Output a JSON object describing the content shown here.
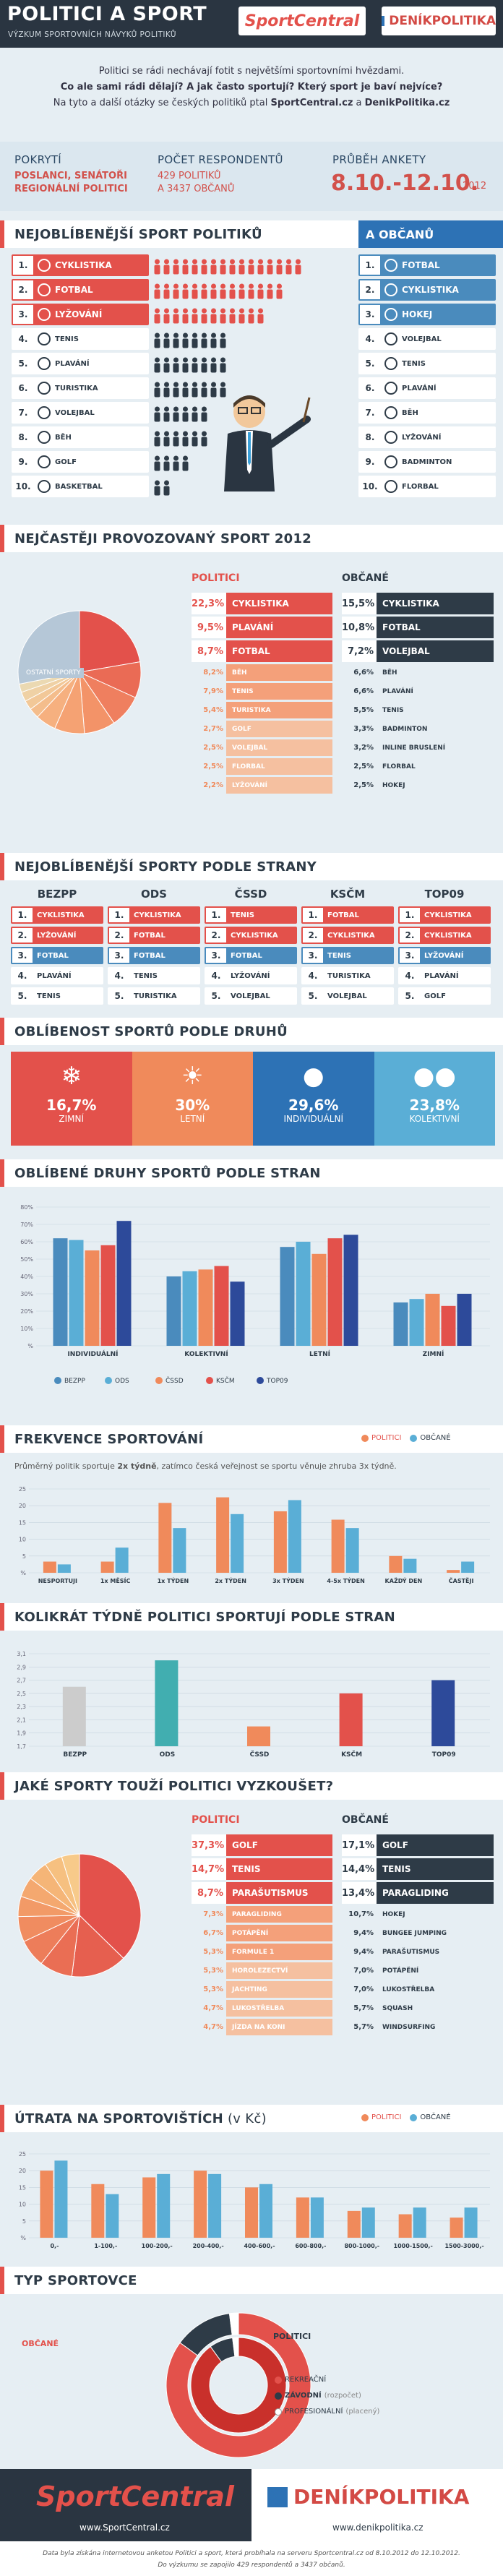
{
  "header": {
    "title": "POLITICI A SPORT",
    "subtitle": "VÝZKUM SPORTOVNÍCH NÁVYKŮ POLITIKŮ",
    "brand1": "SportCentral",
    "brand2": "DENÍKPOLITIKA"
  },
  "intro": {
    "l1": "Politici se rádi nechávají fotit s největšími sportovními hvězdami.",
    "l2": "Co ale sami rádi dělají? A jak často sportují? Který sport je baví nejvíce?",
    "l3a": "Na tyto a další otázky se českých politiků ptal ",
    "l3b": "SportCentral.cz",
    "l3c": " a ",
    "l3d": "DenikPolitika.cz"
  },
  "stats": {
    "h1": "POKRYTÍ",
    "v1a": "POSLANCI, SENÁTOŘI",
    "v1b": "REGIONÁLNÍ POLITICI",
    "h2": "POČET RESPONDENTŮ",
    "v2a": "429 POLITIKŮ",
    "v2b": "A 3437 OBČANŮ",
    "h3": "PRŮBĚH ANKETY",
    "v3": "8.10.-12.10.",
    "v3y": "2012"
  },
  "s1": {
    "title": "NEJOBLÍBENĚJŠÍ SPORT POLITIKŮ",
    "right_title": "A OBČANŮ",
    "pol": [
      "CYKLISTIKA",
      "FOTBAL",
      "LYŽOVÁNÍ",
      "TENIS",
      "PLAVÁNÍ",
      "TURISTIKA",
      "VOLEJBAL",
      "BĚH",
      "GOLF",
      "BASKETBAL"
    ],
    "obc": [
      "FOTBAL",
      "CYKLISTIKA",
      "HOKEJ",
      "VOLEJBAL",
      "TENIS",
      "PLAVÁNÍ",
      "BĚH",
      "LYŽOVÁNÍ",
      "BADMINTON",
      "FLORBAL"
    ],
    "nums": [
      "1.",
      "2.",
      "3.",
      "4.",
      "5.",
      "6.",
      "7.",
      "8.",
      "9.",
      "10."
    ],
    "people": [
      8,
      7,
      6,
      4,
      4,
      4,
      3,
      3,
      2,
      1
    ]
  },
  "s2": {
    "title": "NEJČASTĚJI PROVOZOVANÝ SPORT 2012",
    "lp": "POLITICI",
    "lo": "OBČANÉ",
    "other": "OSTATNÍ SPORTY",
    "pol": [
      [
        "22,3%",
        "CYKLISTIKA"
      ],
      [
        "9,5%",
        "PLAVÁNÍ"
      ],
      [
        "8,7%",
        "FOTBAL"
      ],
      [
        "8,2%",
        "BĚH"
      ],
      [
        "7,9%",
        "TENIS"
      ],
      [
        "5,4%",
        "TURISTIKA"
      ],
      [
        "2,7%",
        "GOLF"
      ],
      [
        "2,5%",
        "VOLEJBAL"
      ],
      [
        "2,5%",
        "FLORBAL"
      ],
      [
        "2,2%",
        "LYŽOVÁNÍ"
      ]
    ],
    "obc": [
      [
        "15,5%",
        "CYKLISTIKA"
      ],
      [
        "10,8%",
        "FOTBAL"
      ],
      [
        "7,2%",
        "VOLEJBAL"
      ],
      [
        "6,6%",
        "BĚH"
      ],
      [
        "6,6%",
        "PLAVÁNÍ"
      ],
      [
        "5,5%",
        "TENIS"
      ],
      [
        "3,3%",
        "BADMINTON"
      ],
      [
        "3,2%",
        "INLINE BRUSLENÍ"
      ],
      [
        "2,5%",
        "FLORBAL"
      ],
      [
        "2,5%",
        "HOKEJ"
      ]
    ]
  },
  "s3": {
    "title": "NEJOBLÍBENĚJŠÍ SPORTY PODLE STRANY",
    "parties": [
      {
        "name": "BEZPP",
        "items": [
          "CYKLISTIKA",
          "LYŽOVÁNÍ",
          "FOTBAL",
          "PLAVÁNÍ",
          "TENIS"
        ]
      },
      {
        "name": "ODS",
        "items": [
          "CYKLISTIKA",
          "FOTBAL",
          "FOTBAL",
          "TENIS",
          "TURISTIKA"
        ]
      },
      {
        "name": "ČSSD",
        "items": [
          "TENIS",
          "CYKLISTIKA",
          "FOTBAL",
          "LYŽOVÁNÍ",
          "VOLEJBAL"
        ]
      },
      {
        "name": "KSČM",
        "items": [
          "FOTBAL",
          "CYKLISTIKA",
          "TENIS",
          "TURISTIKA",
          "VOLEJBAL"
        ]
      },
      {
        "name": "TOP09",
        "items": [
          "CYKLISTIKA",
          "CYKLISTIKA",
          "LYŽOVÁNÍ",
          "PLAVÁNÍ",
          "GOLF"
        ]
      }
    ],
    "nums": [
      "1.",
      "2.",
      "3.",
      "4.",
      "5."
    ]
  },
  "s4": {
    "title": "OBLÍBENOST SPORTŮ PODLE DRUHŮ",
    "items": [
      [
        "16,7%",
        "ZIMNÍ"
      ],
      [
        "30%",
        "LETNÍ"
      ],
      [
        "29,6%",
        "INDIVIDUÁLNÍ"
      ],
      [
        "23,8%",
        "KOLEKTIVNÍ"
      ]
    ]
  },
  "s5": {
    "title": "OBLÍBENÉ DRUHY SPORTŮ PODLE STRAN",
    "legend": [
      "BEZPP",
      "ODS",
      "ČSSD",
      "KSČM",
      "TOP09"
    ],
    "yticks": [
      "80%",
      "70%",
      "60%",
      "50%",
      "40%",
      "30%",
      "20%",
      "10%",
      "%"
    ]
  },
  "s6": {
    "title": "FREKVENCE SPORTOVÁNÍ",
    "lp": "POLITICI",
    "lo": "OBČANÉ",
    "note_a": "Průměrný politik sportuje ",
    "note_b": "2x týdně",
    "note_c": ", zatímco česká veřejnost se sportu věnuje zhruba 3x týdně.",
    "yticks": [
      "25",
      "20",
      "15",
      "10",
      "5",
      "%"
    ]
  },
  "s7": {
    "title": "KOLIKRÁT TÝDNĚ POLITICI SPORTUJÍ PODLE STRAN",
    "yticks": [
      "3,1",
      "2,9",
      "2,7",
      "2,5",
      "2,3",
      "2,1",
      "1,9",
      "1,7"
    ]
  },
  "s8": {
    "title": "JAKÉ SPORTY TOUŽÍ POLITICI VYZKOUŠET?",
    "lp": "POLITICI",
    "lo": "OBČANÉ",
    "pol": [
      [
        "37,3%",
        "GOLF"
      ],
      [
        "14,7%",
        "TENIS"
      ],
      [
        "8,7%",
        "PARAŠUTISMUS"
      ],
      [
        "7,3%",
        "PARAGLIDING"
      ],
      [
        "6,7%",
        "POTÁPĚNÍ"
      ],
      [
        "5,3%",
        "FORMULE 1"
      ],
      [
        "5,3%",
        "HOROLEZECTVÍ"
      ],
      [
        "5,3%",
        "JACHTING"
      ],
      [
        "4,7%",
        "LUKOSTŘELBA"
      ],
      [
        "4,7%",
        "JÍZDA NA KONI"
      ]
    ],
    "obc": [
      [
        "17,1%",
        "GOLF"
      ],
      [
        "14,4%",
        "TENIS"
      ],
      [
        "13,4%",
        "PARAGLIDING"
      ],
      [
        "10,7%",
        "HOKEJ"
      ],
      [
        "9,4%",
        "BUNGEE JUMPING"
      ],
      [
        "9,4%",
        "PARAŠUTISMUS"
      ],
      [
        "7,0%",
        "POTÁPĚNÍ"
      ],
      [
        "7,0%",
        "LUKOSTŘELBA"
      ],
      [
        "5,7%",
        "SQUASH"
      ],
      [
        "5,7%",
        "WINDSURFING"
      ]
    ]
  },
  "s9": {
    "title": "ÚTRATA NA SPORTOVIŠTÍCH",
    "title_unit": "(v Kč)",
    "lp": "POLITICI",
    "lo": "OBČANÉ",
    "yticks": [
      "25",
      "20",
      "15",
      "10",
      "5",
      "%"
    ]
  },
  "s10": {
    "title": "TYP SPORTOVCE",
    "left": "OBČANÉ",
    "right": "POLITICI",
    "l1": "REKREAČNÍ",
    "l2": "ZÁVODNÍ",
    "l2s": "(rozpočet)",
    "l3": "PROFESIONÁLNÍ",
    "l3s": "(placený)"
  },
  "footer": {
    "b1": "SportCentral",
    "u1": "www.SportCentral.cz",
    "b2": "DENÍKPOLITIKA",
    "u2": "www.denikpolitika.cz",
    "note1": "Data byla získána internetovou anketou Politici a sport, která probíhala na serveru Sportcentral.cz od 8.10.2012 do 12.10.2012.",
    "note2": "Do výzkumu se zapojilo 429 respondentů a 3437 občanů."
  },
  "colors": {
    "red": "#e3514b",
    "blue": "#2d72b5",
    "orange": "#f08a5b",
    "lightblue": "#5aaed6",
    "dark": "#2e3b47",
    "teal": "#41aeb0"
  },
  "chart_data": [
    {
      "type": "pie",
      "title": "NEJČASTĚJI PROVOZOVANÝ SPORT 2012",
      "series": [
        {
          "name": "POLITICI",
          "labels": [
            "CYKLISTIKA",
            "PLAVÁNÍ",
            "FOTBAL",
            "BĚH",
            "TENIS",
            "TURISTIKA",
            "GOLF",
            "VOLEJBAL",
            "FLORBAL",
            "LYŽOVÁNÍ",
            "OSTATNÍ SPORTY"
          ],
          "values": [
            22.3,
            9.5,
            8.7,
            8.2,
            7.9,
            5.4,
            2.7,
            2.5,
            2.5,
            2.2,
            28.1
          ]
        }
      ]
    },
    {
      "type": "bar",
      "title": "OBLÍBENÉ DRUHY SPORTŮ PODLE STRAN",
      "categories": [
        "INDIVIDUÁLNÍ",
        "KOLEKTIVNÍ",
        "LETNÍ",
        "ZIMNÍ"
      ],
      "ylim": [
        0,
        80
      ],
      "series": [
        {
          "name": "BEZPP",
          "values": [
            62,
            40,
            57,
            25
          ]
        },
        {
          "name": "ODS",
          "values": [
            61,
            43,
            60,
            27
          ]
        },
        {
          "name": "ČSSD",
          "values": [
            55,
            44,
            53,
            30
          ]
        },
        {
          "name": "KSČM",
          "values": [
            58,
            46,
            62,
            23
          ]
        },
        {
          "name": "TOP09",
          "values": [
            72,
            37,
            64,
            30
          ]
        }
      ]
    },
    {
      "type": "bar",
      "title": "FREKVENCE SPORTOVÁNÍ",
      "categories": [
        "NESPORTUJI",
        "1x MĚSÍC",
        "1x TÝDEN",
        "2x TÝDEN",
        "3x TÝDEN",
        "4-5x TÝDEN",
        "KAŽDÝ DEN",
        "ČASTĚJI"
      ],
      "ylim": [
        0,
        30
      ],
      "series": [
        {
          "name": "POLITICI",
          "values": [
            4,
            4,
            25,
            27,
            22,
            19,
            6,
            1
          ]
        },
        {
          "name": "OBČANÉ",
          "values": [
            3,
            9,
            16,
            21,
            26,
            16,
            5,
            4
          ]
        }
      ]
    },
    {
      "type": "bar",
      "title": "KOLIKRÁT TÝDNĚ POLITICI SPORTUJÍ PODLE STRAN",
      "categories": [
        "BEZPP",
        "ODS",
        "ČSSD",
        "KSČM",
        "TOP09"
      ],
      "ylim": [
        1.7,
        3.1
      ],
      "series": [
        {
          "name": "POLITICI",
          "values": [
            2.6,
            3.0,
            2.0,
            2.5,
            2.7
          ]
        }
      ]
    },
    {
      "type": "pie",
      "title": "JAKÉ SPORTY TOUŽÍ POLITICI VYZKOUŠET?",
      "series": [
        {
          "name": "POLITICI",
          "labels": [
            "GOLF",
            "TENIS",
            "PARAŠUTISMUS",
            "PARAGLIDING",
            "POTÁPĚNÍ",
            "FORMULE 1",
            "HOROLEZECTVÍ",
            "JACHTING",
            "LUKOSTŘELBA",
            "JÍZDA NA KONI"
          ],
          "values": [
            37.3,
            14.7,
            8.7,
            7.3,
            6.7,
            5.3,
            5.3,
            5.3,
            4.7,
            4.7
          ]
        }
      ]
    },
    {
      "type": "bar",
      "title": "ÚTRATA NA SPORTOVIŠTÍCH",
      "categories": [
        "0,-",
        "1-100,-",
        "100-200,-",
        "200-400,-",
        "400-600,-",
        "600-800,-",
        "800-1000,-",
        "1000-1500,-",
        "1500-3000,-"
      ],
      "ylim": [
        0,
        25
      ],
      "series": [
        {
          "name": "POLITICI",
          "values": [
            20,
            16,
            18,
            20,
            15,
            12,
            8,
            7,
            6
          ]
        },
        {
          "name": "OBČANÉ",
          "values": [
            23,
            13,
            19,
            19,
            16,
            12,
            9,
            9,
            9
          ]
        }
      ]
    },
    {
      "type": "pie",
      "title": "TYP SPORTOVCE",
      "series": [
        {
          "name": "POLITICI",
          "labels": [
            "REKREAČNÍ",
            "ZÁVODNÍ",
            "PROFESIONÁLNÍ"
          ],
          "values": [
            90,
            8,
            2
          ]
        },
        {
          "name": "OBČANÉ",
          "labels": [
            "REKREAČNÍ",
            "ZÁVODNÍ",
            "PROFESIONÁLNÍ"
          ],
          "values": [
            85,
            13,
            2
          ]
        }
      ]
    }
  ]
}
